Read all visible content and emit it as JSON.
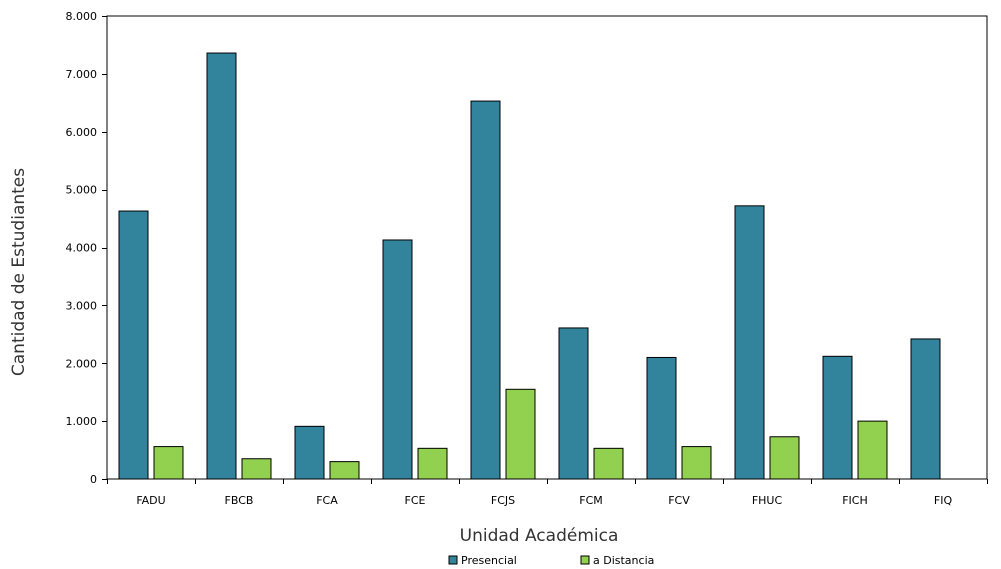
{
  "chart_data": {
    "type": "bar",
    "xlabel": "Unidad Académica",
    "ylabel": "Cantidad de Estudiantes",
    "categories": [
      "FADU",
      "FBCB",
      "FCA",
      "FCE",
      "FCJS",
      "FCM",
      "FCV",
      "FHUC",
      "FICH",
      "FIQ"
    ],
    "series": [
      {
        "name": "Presencial",
        "color": "#31849b",
        "values": [
          4630,
          7360,
          910,
          4130,
          6530,
          2610,
          2100,
          4720,
          2120,
          2420
        ]
      },
      {
        "name": "a Distancia",
        "color": "#92d050",
        "values": [
          560,
          350,
          300,
          530,
          1550,
          530,
          560,
          730,
          1000,
          0
        ]
      }
    ],
    "ylim": [
      0,
      8000
    ],
    "yticks": [
      0,
      1000,
      2000,
      3000,
      4000,
      5000,
      6000,
      7000,
      8000
    ],
    "ytick_labels": [
      "0",
      "1.000",
      "2.000",
      "3.000",
      "4.000",
      "5.000",
      "6.000",
      "7.000",
      "8.000"
    ],
    "grid": false,
    "legend_position": "bottom"
  }
}
